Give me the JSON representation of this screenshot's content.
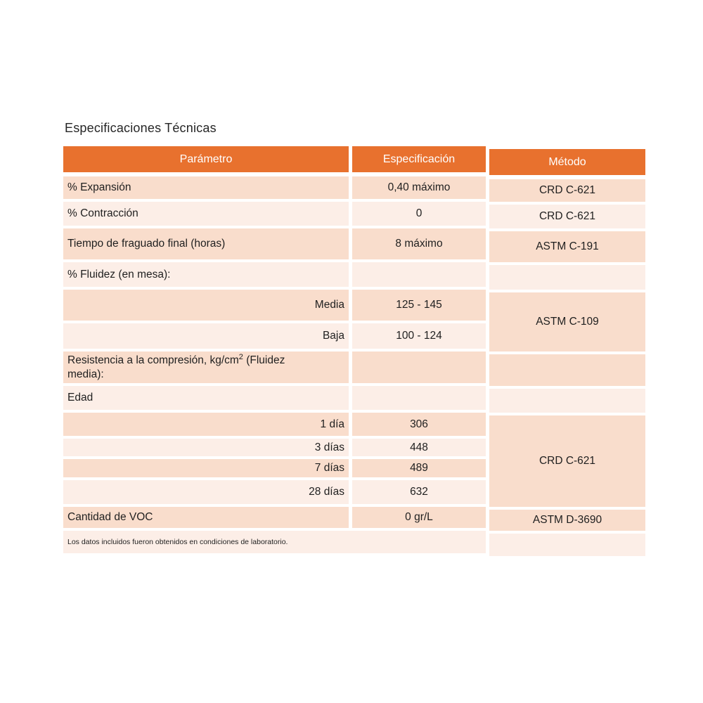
{
  "title": "Especificaciones Técnicas",
  "table": {
    "headers": {
      "param": "Parámetro",
      "spec": "Especificación",
      "method": "Método"
    },
    "rows": [
      {
        "param": "% Expansión",
        "spec": "0,40 máximo"
      },
      {
        "param": "% Contracción",
        "spec": "0"
      },
      {
        "param": "Tiempo de fraguado final (horas)",
        "spec": "8 máximo"
      },
      {
        "param": "% Fluidez (en mesa):",
        "spec": ""
      },
      {
        "param": "Media",
        "spec": "125 - 145"
      },
      {
        "param": "Baja",
        "spec": "100 - 124"
      },
      {
        "param_prefix": "Resistencia a la compresión, kg/cm",
        "param_sup": "2",
        "param_suffix": " (Fluidez",
        "param_line2": "media):",
        "spec": ""
      },
      {
        "param": "Edad",
        "spec": ""
      },
      {
        "param": "1 día",
        "spec": "306"
      },
      {
        "param": "3 días",
        "spec": "448"
      },
      {
        "param": "7 días",
        "spec": "489"
      },
      {
        "param": "28 días",
        "spec": "632"
      },
      {
        "param": "Cantidad de VOC",
        "spec": "0 gr/L"
      }
    ],
    "method_cells": [
      {
        "label": "CRD C-621"
      },
      {
        "label": "CRD C-621"
      },
      {
        "label": "ASTM C-191"
      },
      {
        "label": ""
      },
      {
        "label": "ASTM C-109"
      },
      {
        "label": ""
      },
      {
        "label": ""
      },
      {
        "label": "CRD C-621"
      },
      {
        "label": "ASTM D-3690"
      },
      {
        "label": ""
      }
    ],
    "footnote": "Los datos incluidos fueron obtenidos en condiciones de laboratorio."
  },
  "colors": {
    "header_bg": "#E8712E",
    "header_text": "#FFFFFF",
    "row_dark": "#F9DDCC",
    "row_light": "#FCEEE7",
    "body_text": "#1F1F1F"
  }
}
